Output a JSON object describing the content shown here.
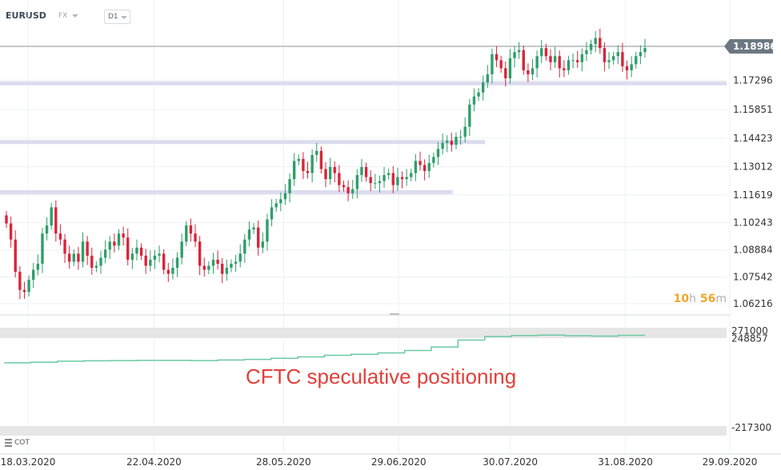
{
  "header": {
    "symbol": "EURUSD",
    "market": "FX",
    "timeframe": "D1"
  },
  "countdown": {
    "hours": "10",
    "h_unit": "h",
    "minutes": "56",
    "m_unit": "m"
  },
  "overlay_text": "CFTC speculative positioning",
  "indicator": {
    "label": "COT"
  },
  "colors": {
    "up": "#2e9e6a",
    "down": "#d8243a",
    "cot_line": "#6bc9a4",
    "zone": "#dcdcef",
    "current_price_bg": "#6d7783"
  },
  "chart_data": [
    {
      "type": "candlestick",
      "current_price": "1.18986",
      "current_price_value": 1.18986,
      "ylim": [
        1.057,
        1.197
      ],
      "y_ticks": [
        "1.17296",
        "1.15851",
        "1.14423",
        "1.13012",
        "1.11619",
        "1.10243",
        "1.08884",
        "1.07542",
        "1.06216"
      ],
      "x_ticks": [
        "18.03.2020",
        "22.04.2020",
        "28.05.2020",
        "29.06.2020",
        "30.07.2020",
        "31.08.2020",
        "29.09.2020"
      ],
      "horizontal_zones": [
        {
          "level": 1.1715,
          "from": "18.03.2020",
          "to": "end"
        },
        {
          "level": 1.1424,
          "from": "18.03.2020",
          "to": "23.07.2020"
        },
        {
          "level": 1.1175,
          "from": "18.03.2020",
          "to": "14.07.2020"
        }
      ],
      "candles_close": [
        1.102,
        1.094,
        1.078,
        1.069,
        1.068,
        1.074,
        1.079,
        1.082,
        1.097,
        1.101,
        1.11,
        1.097,
        1.094,
        1.087,
        1.083,
        1.087,
        1.083,
        1.093,
        1.086,
        1.08,
        1.081,
        1.085,
        1.089,
        1.093,
        1.091,
        1.097,
        1.095,
        1.084,
        1.087,
        1.09,
        1.086,
        1.081,
        1.084,
        1.086,
        1.087,
        1.079,
        1.077,
        1.08,
        1.085,
        1.093,
        1.101,
        1.097,
        1.093,
        1.081,
        1.079,
        1.081,
        1.084,
        1.082,
        1.077,
        1.08,
        1.082,
        1.083,
        1.087,
        1.094,
        1.099,
        1.1,
        1.09,
        1.093,
        1.104,
        1.11,
        1.112,
        1.114,
        1.117,
        1.124,
        1.133,
        1.134,
        1.128,
        1.127,
        1.136,
        1.138,
        1.129,
        1.124,
        1.13,
        1.127,
        1.121,
        1.12,
        1.117,
        1.119,
        1.126,
        1.13,
        1.125,
        1.122,
        1.122,
        1.123,
        1.126,
        1.127,
        1.121,
        1.125,
        1.124,
        1.125,
        1.127,
        1.133,
        1.131,
        1.128,
        1.132,
        1.135,
        1.139,
        1.142,
        1.143,
        1.141,
        1.145,
        1.145,
        1.15,
        1.161,
        1.165,
        1.167,
        1.172,
        1.176,
        1.186,
        1.183,
        1.179,
        1.174,
        1.184,
        1.187,
        1.188,
        1.178,
        1.176,
        1.179,
        1.185,
        1.189,
        1.185,
        1.182,
        1.185,
        1.179,
        1.178,
        1.183,
        1.183,
        1.182,
        1.186,
        1.188,
        1.191,
        1.194,
        1.189,
        1.182,
        1.183,
        1.185,
        1.187,
        1.18,
        1.178,
        1.181,
        1.185,
        1.187,
        1.189
      ],
      "opens_highs_lows_note": ""
    },
    {
      "type": "line",
      "name": "COT",
      "ylim": [
        -217300,
        271000
      ],
      "y_ticks": [
        "271000",
        "248857",
        "-217300"
      ],
      "values": [
        110000,
        113000,
        118000,
        120000,
        121000,
        122000,
        122000,
        121000,
        124000,
        127000,
        133000,
        140000,
        148000,
        153000,
        160000,
        172000,
        190000,
        225000,
        243000,
        248000,
        250000,
        247000,
        245000,
        248857
      ]
    }
  ]
}
